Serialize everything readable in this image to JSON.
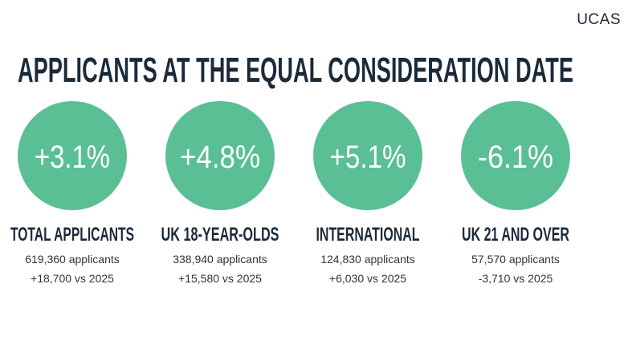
{
  "logo": "UCAS",
  "title": "APPLICANTS AT THE EQUAL CONSIDERATION DATE",
  "stats": [
    {
      "value": "+3.1%",
      "label": "TOTAL APPLICANTS",
      "applicants": "619,360 applicants",
      "change": "+18,700 vs 2025"
    },
    {
      "value": "+4.8%",
      "label": "UK 18-YEAR-OLDS",
      "applicants": "338,940 applicants",
      "change": "+15,580 vs 2025"
    },
    {
      "value": "+5.1%",
      "label": "INTERNATIONAL",
      "applicants": "124,830 applicants",
      "change": "+6,030 vs 2025"
    },
    {
      "value": "-6.1%",
      "label": "UK 21 AND OVER",
      "applicants": "57,570 applicants",
      "change": "-3,710 vs 2025"
    }
  ]
}
